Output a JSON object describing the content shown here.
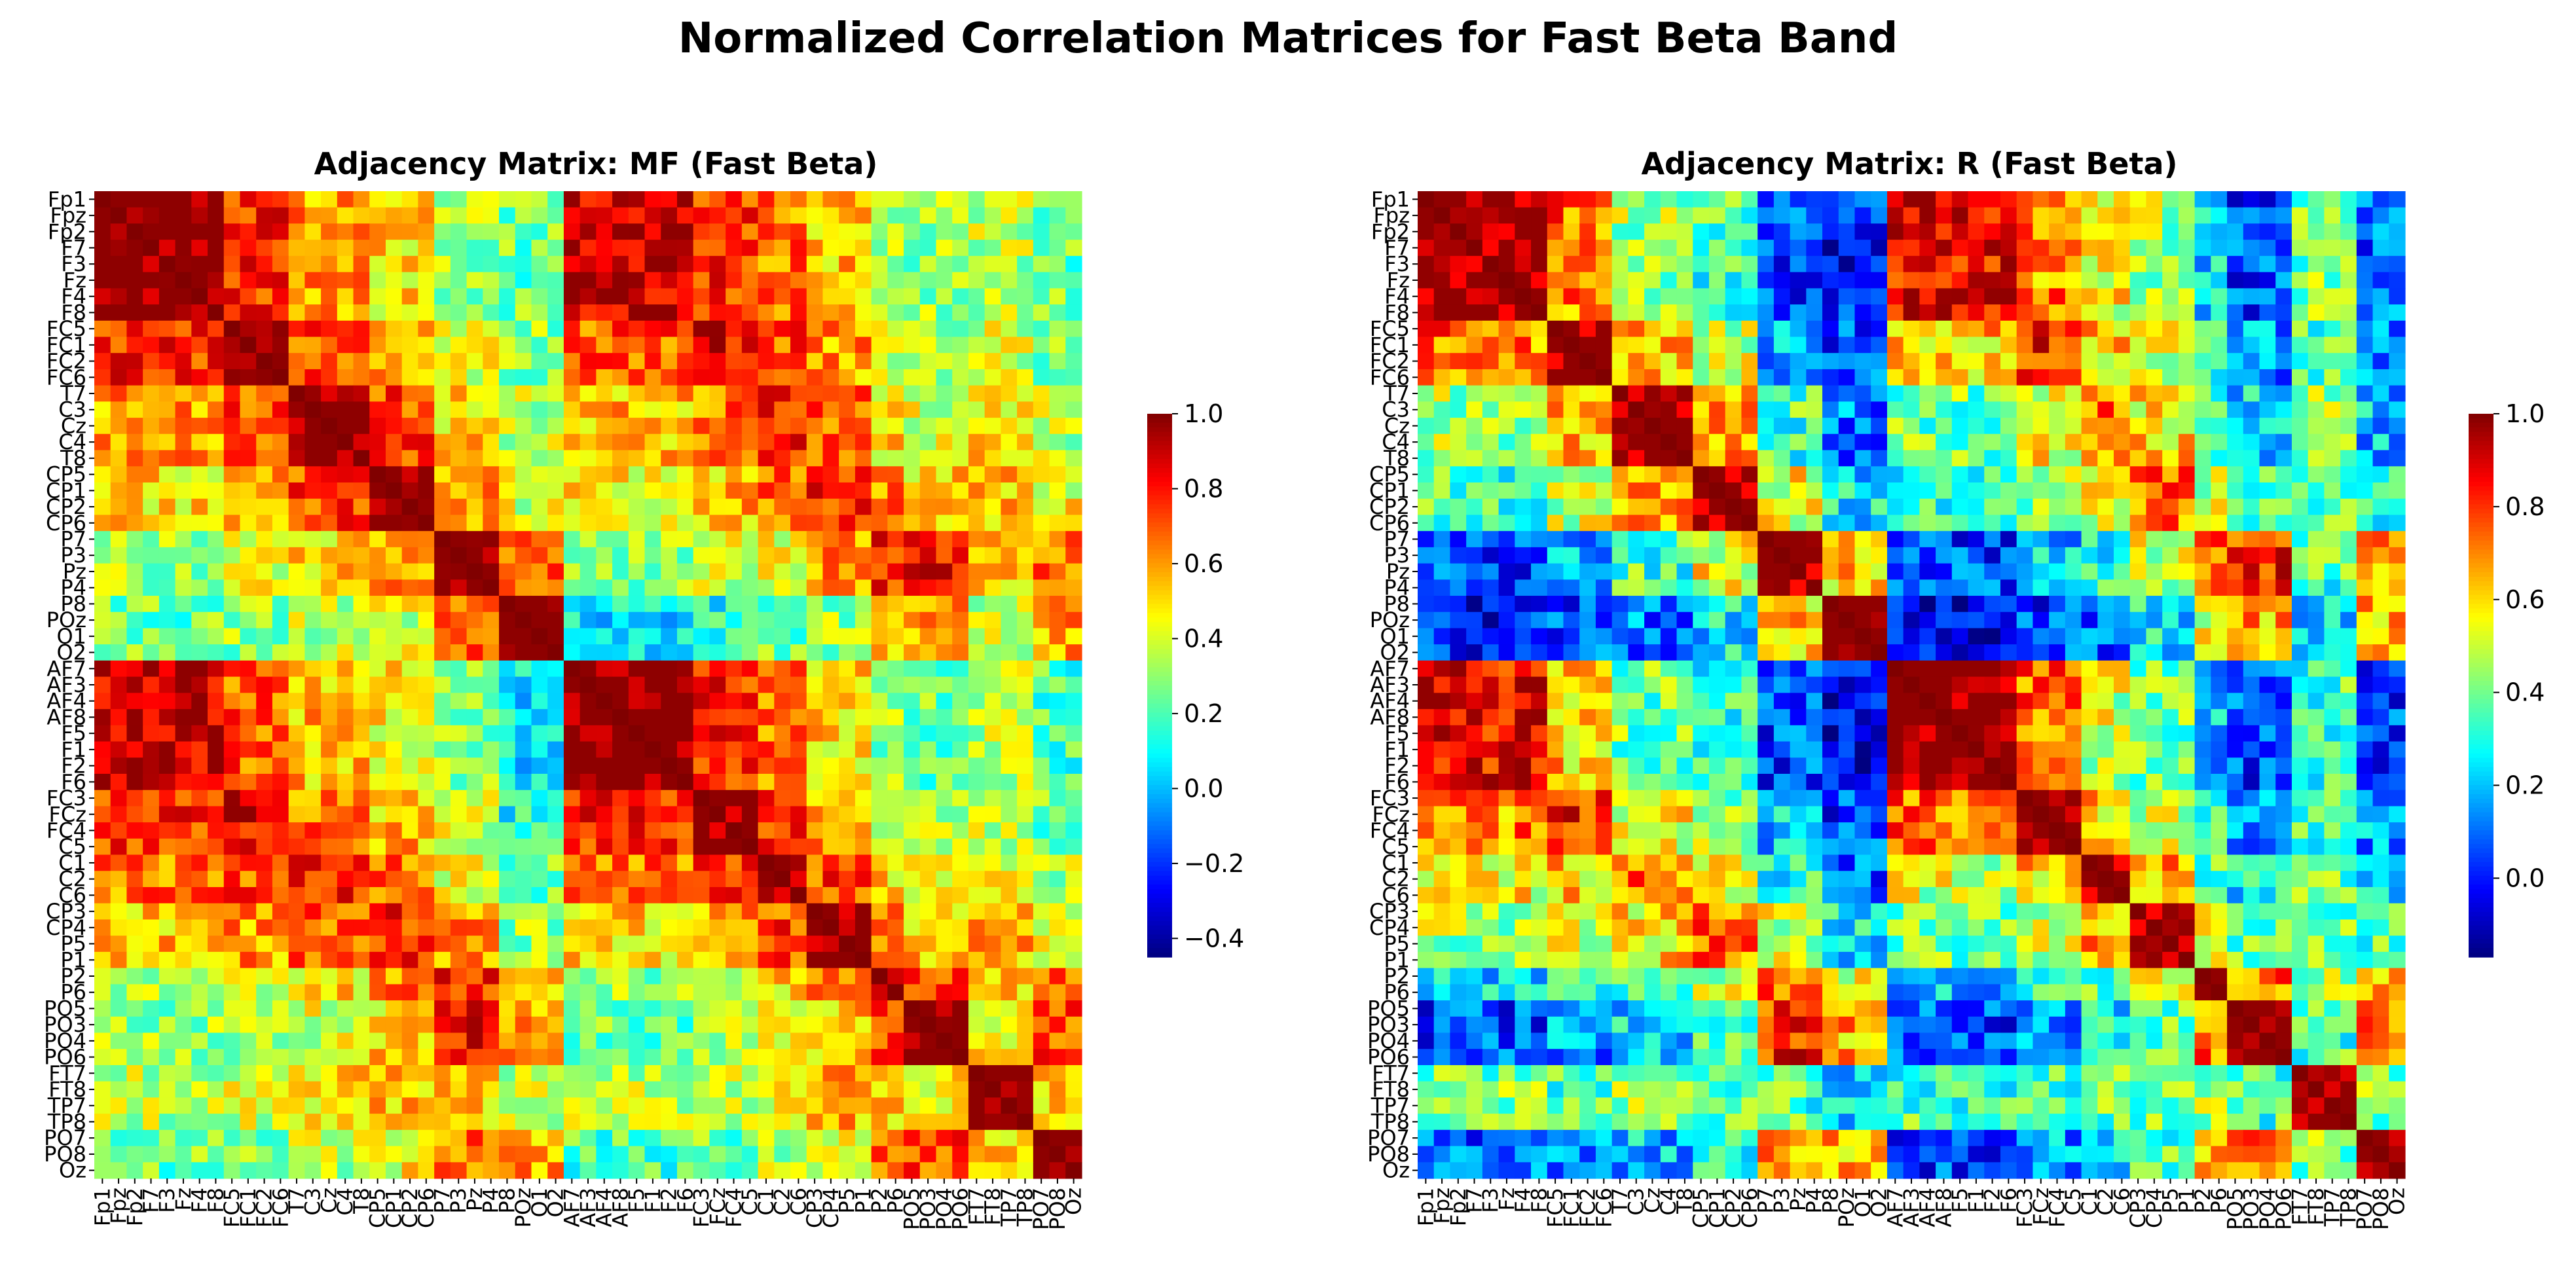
{
  "figure": {
    "title": "Normalized Correlation Matrices for Fast Beta Band"
  },
  "chart_data": [
    {
      "type": "heatmap",
      "title": "Adjacency Matrix: MF (Fast Beta)",
      "colormap": "jet",
      "vmin": -0.45,
      "vmax": 1.0,
      "colorbar_ticks": [
        1.0,
        0.8,
        0.6,
        0.4,
        0.2,
        0.0,
        -0.2,
        -0.4
      ],
      "colorbar_tick_labels": [
        "1.0",
        "0.8",
        "0.6",
        "0.4",
        "0.2",
        "0.0",
        "−0.2",
        "−0.4"
      ],
      "row_labels": [
        "Fp1",
        "Fpz",
        "Fp2",
        "F7",
        "F3",
        "Fz",
        "F4",
        "F8",
        "FC5",
        "FC1",
        "FC2",
        "FC6",
        "T7",
        "C3",
        "Cz",
        "C4",
        "T8",
        "CP5",
        "CP1",
        "CP2",
        "CP6",
        "P7",
        "P3",
        "Pz",
        "P4",
        "P8",
        "POz",
        "O1",
        "O2",
        "AF7",
        "AF3",
        "AF4",
        "AF8",
        "F5",
        "F1",
        "F2",
        "F6",
        "FC3",
        "FCz",
        "FC4",
        "C5",
        "C1",
        "C2",
        "C6",
        "CP3",
        "CP4",
        "P5",
        "P1",
        "P2",
        "P6",
        "PO5",
        "PO3",
        "PO4",
        "PO6",
        "FT7",
        "FT8",
        "TP7",
        "TP8",
        "PO7",
        "PO8",
        "Oz"
      ],
      "col_labels": [
        "Fp1",
        "Fpz",
        "Fp2",
        "F7",
        "F3",
        "Fz",
        "F4",
        "F8",
        "FC5",
        "FC1",
        "FC2",
        "FC6",
        "T7",
        "C3",
        "Cz",
        "C4",
        "T8",
        "CP5",
        "CP1",
        "CP2",
        "CP6",
        "P7",
        "P3",
        "Pz",
        "P4",
        "P8",
        "POz",
        "O1",
        "O2",
        "AF7",
        "AF3",
        "AF4",
        "AF8",
        "F5",
        "F1",
        "F2",
        "F6",
        "FC3",
        "FCz",
        "FC4",
        "C5",
        "C1",
        "C2",
        "C6",
        "CP3",
        "CP4",
        "P5",
        "P1",
        "P2",
        "P6",
        "PO5",
        "PO3",
        "PO4",
        "PO6",
        "FT7",
        "FT8",
        "TP7",
        "TP8",
        "PO7",
        "PO8",
        "Oz"
      ],
      "group_sizes": [
        8,
        4,
        5,
        4,
        4,
        4,
        8,
        4,
        3,
        4,
        2,
        4,
        4,
        7
      ],
      "group_block_values": [
        [
          1.0,
          0.78,
          0.6,
          0.5,
          0.32,
          0.25,
          0.9,
          0.75,
          0.65,
          0.55,
          0.35,
          0.3,
          0.35,
          0.25
        ],
        [
          0.78,
          1.0,
          0.72,
          0.62,
          0.4,
          0.3,
          0.7,
          0.85,
          0.7,
          0.6,
          0.42,
          0.35,
          0.38,
          0.3
        ],
        [
          0.6,
          0.72,
          1.0,
          0.72,
          0.5,
          0.35,
          0.55,
          0.65,
          0.8,
          0.7,
          0.5,
          0.4,
          0.5,
          0.35
        ],
        [
          0.5,
          0.62,
          0.72,
          1.0,
          0.62,
          0.4,
          0.45,
          0.55,
          0.65,
          0.78,
          0.65,
          0.5,
          0.55,
          0.45
        ],
        [
          0.32,
          0.4,
          0.5,
          0.62,
          1.0,
          0.68,
          0.3,
          0.38,
          0.45,
          0.6,
          0.78,
          0.8,
          0.55,
          0.65
        ],
        [
          0.1,
          0.15,
          0.3,
          0.35,
          0.6,
          1.0,
          0.08,
          0.12,
          0.25,
          0.3,
          0.55,
          0.6,
          0.35,
          0.6
        ],
        [
          0.9,
          0.7,
          0.55,
          0.45,
          0.3,
          0.08,
          1.0,
          0.78,
          0.65,
          0.5,
          0.3,
          0.25,
          0.35,
          0.2
        ],
        [
          0.75,
          0.85,
          0.65,
          0.55,
          0.38,
          0.12,
          0.78,
          1.0,
          0.72,
          0.6,
          0.4,
          0.35,
          0.38,
          0.25
        ],
        [
          0.65,
          0.7,
          0.8,
          0.65,
          0.45,
          0.25,
          0.65,
          0.72,
          1.0,
          0.72,
          0.5,
          0.4,
          0.45,
          0.35
        ],
        [
          0.55,
          0.6,
          0.7,
          0.78,
          0.6,
          0.3,
          0.5,
          0.6,
          0.72,
          1.0,
          0.65,
          0.55,
          0.55,
          0.45
        ],
        [
          0.35,
          0.42,
          0.5,
          0.65,
          0.78,
          0.55,
          0.3,
          0.4,
          0.5,
          0.65,
          1.0,
          0.72,
          0.55,
          0.65
        ],
        [
          0.3,
          0.35,
          0.4,
          0.5,
          0.8,
          0.6,
          0.25,
          0.35,
          0.4,
          0.55,
          0.72,
          1.0,
          0.5,
          0.72
        ],
        [
          0.35,
          0.38,
          0.5,
          0.55,
          0.55,
          0.35,
          0.35,
          0.38,
          0.45,
          0.55,
          0.55,
          0.5,
          1.0,
          0.5
        ],
        [
          0.25,
          0.3,
          0.35,
          0.45,
          0.65,
          0.6,
          0.2,
          0.25,
          0.35,
          0.45,
          0.65,
          0.72,
          0.5,
          1.0
        ]
      ]
    },
    {
      "type": "heatmap",
      "title": "Adjacency Matrix: R (Fast Beta)",
      "colormap": "jet",
      "vmin": -0.17,
      "vmax": 1.0,
      "colorbar_ticks": [
        1.0,
        0.8,
        0.6,
        0.4,
        0.2,
        0.0
      ],
      "colorbar_tick_labels": [
        "1.0",
        "0.8",
        "0.6",
        "0.4",
        "0.2",
        "0.0"
      ],
      "row_labels": [
        "Fp1",
        "Fpz",
        "Fp2",
        "F7",
        "F3",
        "Fz",
        "F4",
        "F8",
        "FC5",
        "FC1",
        "FC2",
        "FC6",
        "T7",
        "C3",
        "Cz",
        "C4",
        "T8",
        "CP5",
        "CP1",
        "CP2",
        "CP6",
        "P7",
        "P3",
        "Pz",
        "P4",
        "P8",
        "POz",
        "O1",
        "O2",
        "AF7",
        "AF3",
        "AF4",
        "AF8",
        "F5",
        "F1",
        "F2",
        "F6",
        "FC3",
        "FCz",
        "FC4",
        "C5",
        "C1",
        "C2",
        "C6",
        "CP3",
        "CP4",
        "P5",
        "P1",
        "P2",
        "P6",
        "PO5",
        "PO3",
        "PO4",
        "PO6",
        "FT7",
        "FT8",
        "TP7",
        "TP8",
        "PO7",
        "PO8",
        "Oz"
      ],
      "col_labels": [
        "Fp1",
        "Fpz",
        "Fp2",
        "F7",
        "F3",
        "Fz",
        "F4",
        "F8",
        "FC5",
        "FC1",
        "FC2",
        "FC6",
        "T7",
        "C3",
        "Cz",
        "C4",
        "T8",
        "CP5",
        "CP1",
        "CP2",
        "CP6",
        "P7",
        "P3",
        "Pz",
        "P4",
        "P8",
        "POz",
        "O1",
        "O2",
        "AF7",
        "AF3",
        "AF4",
        "AF8",
        "F5",
        "F1",
        "F2",
        "F6",
        "FC3",
        "FCz",
        "FC4",
        "C5",
        "C1",
        "C2",
        "C6",
        "CP3",
        "CP4",
        "P5",
        "P1",
        "P2",
        "P6",
        "PO5",
        "PO3",
        "PO4",
        "PO6",
        "FT7",
        "FT8",
        "TP7",
        "TP8",
        "PO7",
        "PO8",
        "Oz"
      ],
      "group_sizes": [
        8,
        4,
        5,
        4,
        4,
        4,
        8,
        4,
        3,
        4,
        2,
        4,
        4,
        7
      ],
      "group_block_values": [
        [
          1.0,
          0.72,
          0.45,
          0.35,
          0.05,
          0.0,
          0.88,
          0.7,
          0.55,
          0.45,
          0.25,
          0.05,
          0.4,
          0.1
        ],
        [
          0.72,
          1.0,
          0.65,
          0.5,
          0.2,
          0.05,
          0.62,
          0.82,
          0.6,
          0.5,
          0.3,
          0.15,
          0.35,
          0.15
        ],
        [
          0.45,
          0.65,
          1.0,
          0.65,
          0.35,
          0.1,
          0.4,
          0.55,
          0.72,
          0.6,
          0.4,
          0.25,
          0.45,
          0.2
        ],
        [
          0.35,
          0.5,
          0.65,
          1.0,
          0.55,
          0.25,
          0.3,
          0.45,
          0.55,
          0.72,
          0.5,
          0.4,
          0.4,
          0.35
        ],
        [
          0.05,
          0.2,
          0.35,
          0.55,
          1.0,
          0.62,
          0.05,
          0.2,
          0.3,
          0.5,
          0.75,
          0.82,
          0.35,
          0.7
        ],
        [
          0.0,
          0.05,
          0.1,
          0.25,
          0.62,
          1.0,
          -0.05,
          0.05,
          0.1,
          0.25,
          0.55,
          0.65,
          0.2,
          0.65
        ],
        [
          0.88,
          0.62,
          0.4,
          0.3,
          0.05,
          -0.05,
          1.0,
          0.72,
          0.5,
          0.4,
          0.2,
          0.05,
          0.35,
          0.05
        ],
        [
          0.7,
          0.82,
          0.55,
          0.45,
          0.2,
          0.05,
          0.72,
          1.0,
          0.62,
          0.5,
          0.3,
          0.15,
          0.35,
          0.15
        ],
        [
          0.55,
          0.6,
          0.72,
          0.55,
          0.3,
          0.1,
          0.5,
          0.62,
          1.0,
          0.65,
          0.4,
          0.25,
          0.4,
          0.2
        ],
        [
          0.45,
          0.5,
          0.6,
          0.72,
          0.5,
          0.25,
          0.4,
          0.5,
          0.65,
          1.0,
          0.5,
          0.4,
          0.4,
          0.35
        ],
        [
          0.25,
          0.3,
          0.4,
          0.5,
          0.75,
          0.55,
          0.2,
          0.3,
          0.4,
          0.5,
          1.0,
          0.72,
          0.45,
          0.65
        ],
        [
          0.05,
          0.15,
          0.25,
          0.4,
          0.82,
          0.65,
          0.05,
          0.15,
          0.25,
          0.4,
          0.72,
          1.0,
          0.35,
          0.72
        ],
        [
          0.4,
          0.35,
          0.45,
          0.4,
          0.35,
          0.2,
          0.35,
          0.35,
          0.4,
          0.4,
          0.45,
          0.35,
          1.0,
          0.4
        ],
        [
          0.1,
          0.15,
          0.2,
          0.35,
          0.7,
          0.65,
          0.05,
          0.15,
          0.2,
          0.35,
          0.65,
          0.72,
          0.4,
          1.0
        ]
      ]
    }
  ]
}
